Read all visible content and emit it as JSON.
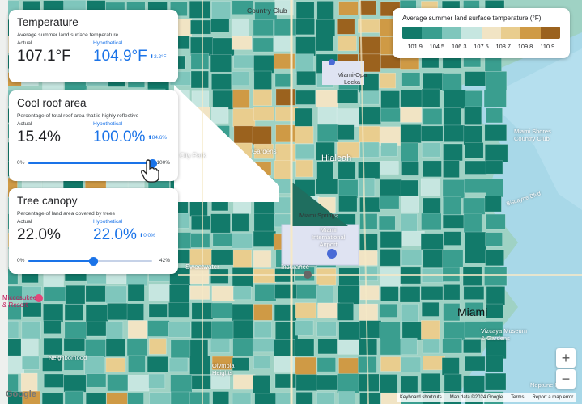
{
  "temperature": {
    "title": "Temperature",
    "subtitle": "Average summer land surface temperature",
    "actual_label": "Actual",
    "actual_value": "107.1°F",
    "hypo_label": "Hypothetical",
    "hypo_value": "104.9°F",
    "delta": "⬇2.2°F"
  },
  "cool_roof": {
    "title": "Cool roof area",
    "subtitle": "Percentage of total roof area that is highly reflective",
    "actual_label": "Actual",
    "actual_value": "15.4%",
    "hypo_label": "Hypothetical",
    "hypo_value": "100.0%",
    "delta": "⬆84.6%",
    "slider_min": "0%",
    "slider_max": "100%",
    "slider_fraction": 1.0
  },
  "tree_canopy": {
    "title": "Tree canopy",
    "subtitle": "Percentage of land area covered by trees",
    "actual_label": "Actual",
    "actual_value": "22.0%",
    "hypo_label": "Hypothetical",
    "hypo_value": "22.0%",
    "delta": "⬆0.0%",
    "slider_min": "0%",
    "slider_max": "42%",
    "slider_fraction": 0.524
  },
  "legend": {
    "title": "Average summer land surface temperature (°F)",
    "colors": [
      "#127a6a",
      "#3a9e8f",
      "#7fc6bc",
      "#c6e6e0",
      "#f1e4c4",
      "#e9cd8e",
      "#cf9a45",
      "#9b621e"
    ],
    "ticks": [
      "101.9",
      "104.5",
      "106.3",
      "107.5",
      "108.7",
      "109.8",
      "110.9"
    ]
  },
  "map_labels": {
    "country_club": "Country Club",
    "miami_opa_locka": "Miami-Opa\nLocka",
    "miami_shores": "Miami Shores\nCountry Club",
    "biscayne": "Biscayne Blvd",
    "hialeah": "Hialeah",
    "miami_springs": "Miami Springs",
    "miami_intl": "Miami\nInternational\nAirport",
    "insurance": "Insurance",
    "sweetwater": "Sweetwater",
    "miccosukee": "Miccosukee\n& Resort",
    "miami": "Miami",
    "vizcaya": "Vizcaya Museum\n& Gardens",
    "olympia": "Olympia\nHeights",
    "neighborhood": "Neighborhood",
    "neptune": "Neptune Meri...",
    "gardens": "Gardens",
    "city_park": "City Park"
  },
  "zoom": {
    "in": "+",
    "out": "−"
  },
  "attribution": {
    "shortcuts": "Keyboard shortcuts",
    "data": "Map data ©2024 Google",
    "terms": "Terms",
    "report": "Report a map error"
  },
  "google_logo": "Google"
}
